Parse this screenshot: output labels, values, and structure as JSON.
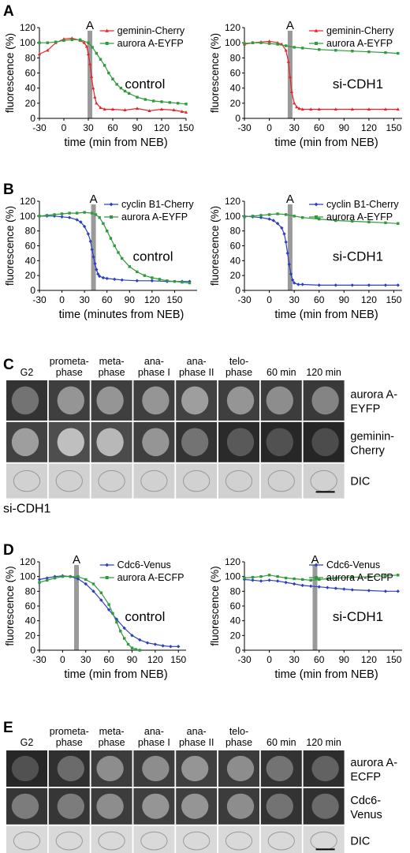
{
  "panels": [
    {
      "id": "panel-a",
      "letter": "A"
    },
    {
      "id": "panel-b",
      "letter": "B"
    },
    {
      "id": "panel-c",
      "letter": "C"
    },
    {
      "id": "panel-d",
      "letter": "D"
    },
    {
      "id": "panel-e",
      "letter": "E"
    }
  ],
  "chart_data": [
    {
      "type": "line",
      "panel": "A",
      "annotation": "control",
      "marker_label": "A",
      "marker_x": 32,
      "xlabel": "time (min from NEB)",
      "ylabel": "fluorescence (%)",
      "xlim": [
        -30,
        150
      ],
      "ylim": [
        0,
        120
      ],
      "xticks": [
        -30,
        0,
        30,
        60,
        90,
        120,
        150
      ],
      "yticks": [
        0,
        20,
        40,
        60,
        80,
        100,
        120
      ],
      "legend_position": "top-right",
      "series": [
        {
          "name": "geminin-Cherry",
          "color": "#e8242b",
          "marker": "triangle",
          "x": [
            -30,
            -20,
            -10,
            0,
            10,
            20,
            25,
            28,
            30,
            32,
            34,
            36,
            38,
            40,
            45,
            50,
            60,
            75,
            90,
            105,
            120,
            135,
            145,
            150
          ],
          "y": [
            85,
            90,
            100,
            105,
            106,
            103,
            100,
            95,
            85,
            72,
            55,
            40,
            28,
            20,
            14,
            12,
            12,
            11,
            13,
            10,
            12,
            11,
            9,
            8
          ]
        },
        {
          "name": "aurora A-EYFP",
          "color": "#2e9a3c",
          "marker": "square",
          "x": [
            -30,
            -20,
            -10,
            0,
            10,
            20,
            30,
            35,
            40,
            45,
            50,
            55,
            60,
            65,
            70,
            75,
            80,
            90,
            100,
            110,
            120,
            130,
            140,
            150
          ],
          "y": [
            100,
            100,
            101,
            103,
            104,
            104,
            100,
            94,
            86,
            78,
            70,
            60,
            52,
            45,
            40,
            36,
            33,
            28,
            25,
            23,
            22,
            21,
            20,
            19
          ]
        }
      ]
    },
    {
      "type": "line",
      "panel": "A",
      "annotation": "si-CDH1",
      "marker_label": "A",
      "marker_x": 25,
      "xlabel": "time (min from NEB)",
      "ylabel": "fluorescence (%)",
      "xlim": [
        -30,
        160
      ],
      "ylim": [
        0,
        120
      ],
      "xticks": [
        -30,
        0,
        30,
        60,
        90,
        120,
        150
      ],
      "yticks": [
        0,
        20,
        40,
        60,
        80,
        100,
        120
      ],
      "legend_position": "top-right",
      "series": [
        {
          "name": "geminin-Cherry",
          "color": "#e8242b",
          "marker": "triangle",
          "x": [
            -30,
            -20,
            -10,
            0,
            10,
            15,
            20,
            23,
            25,
            27,
            30,
            33,
            36,
            40,
            50,
            60,
            80,
            100,
            120,
            140,
            155
          ],
          "y": [
            98,
            100,
            101,
            102,
            100,
            98,
            90,
            75,
            55,
            35,
            20,
            15,
            13,
            12,
            12,
            12,
            12,
            12,
            12,
            12,
            12
          ]
        },
        {
          "name": "aurora A-EYFP",
          "color": "#2e9a3c",
          "marker": "square",
          "x": [
            -30,
            -20,
            -10,
            0,
            10,
            20,
            30,
            40,
            60,
            80,
            100,
            120,
            140,
            155
          ],
          "y": [
            99,
            100,
            100,
            99,
            98,
            96,
            94,
            93,
            91,
            90,
            89,
            88,
            87,
            86
          ]
        }
      ]
    },
    {
      "type": "line",
      "panel": "B",
      "annotation": "control",
      "marker_label": "A",
      "marker_x": 42,
      "xlabel": "time (minutes from NEB)",
      "ylabel": "fluorescence (%)",
      "xlim": [
        -30,
        180
      ],
      "ylim": [
        0,
        120
      ],
      "xticks": [
        -30,
        0,
        30,
        60,
        90,
        120,
        150
      ],
      "yticks": [
        0,
        20,
        40,
        60,
        80,
        100,
        120
      ],
      "legend_position": "top-right",
      "series": [
        {
          "name": "cyclin B1-Cherry",
          "color": "#2b3fbf",
          "marker": "diamond",
          "x": [
            -30,
            -20,
            -10,
            0,
            10,
            20,
            25,
            30,
            35,
            38,
            40,
            42,
            44,
            46,
            48,
            50,
            55,
            60,
            70,
            80,
            100,
            120,
            140,
            160,
            170
          ],
          "y": [
            100,
            100,
            100,
            99,
            98,
            95,
            92,
            86,
            76,
            66,
            55,
            45,
            36,
            28,
            22,
            19,
            17,
            16,
            15,
            14,
            13,
            13,
            12,
            12,
            12
          ]
        },
        {
          "name": "aurora A-EYFP",
          "color": "#2e9a3c",
          "marker": "square",
          "x": [
            -30,
            -20,
            -10,
            0,
            10,
            20,
            30,
            40,
            45,
            50,
            55,
            60,
            65,
            70,
            75,
            80,
            90,
            100,
            110,
            120,
            130,
            140,
            150,
            160,
            170
          ],
          "y": [
            100,
            101,
            102,
            103,
            104,
            104,
            105,
            104,
            102,
            98,
            90,
            80,
            70,
            60,
            51,
            43,
            32,
            25,
            20,
            17,
            15,
            13,
            12,
            11,
            10
          ]
        }
      ]
    },
    {
      "type": "line",
      "panel": "B",
      "annotation": "si-CDH1",
      "marker_label": "A",
      "marker_x": 25,
      "xlabel": "time (min from NEB)",
      "ylabel": "fluorescence (%)",
      "xlim": [
        -30,
        160
      ],
      "ylim": [
        0,
        120
      ],
      "xticks": [
        -30,
        0,
        30,
        60,
        90,
        120,
        150
      ],
      "yticks": [
        0,
        20,
        40,
        60,
        80,
        100,
        120
      ],
      "legend_position": "top-right",
      "series": [
        {
          "name": "cyclin B1-Cherry",
          "color": "#2b3fbf",
          "marker": "diamond",
          "x": [
            -30,
            -20,
            -10,
            0,
            5,
            10,
            15,
            18,
            20,
            22,
            24,
            26,
            28,
            30,
            35,
            40,
            60,
            80,
            100,
            120,
            140,
            155
          ],
          "y": [
            100,
            99,
            98,
            96,
            94,
            90,
            84,
            76,
            65,
            50,
            35,
            22,
            14,
            10,
            8,
            8,
            7,
            7,
            7,
            7,
            7,
            7
          ]
        },
        {
          "name": "aurora A-EYFP",
          "color": "#2e9a3c",
          "marker": "square",
          "x": [
            -30,
            -20,
            -10,
            0,
            10,
            20,
            30,
            40,
            60,
            80,
            100,
            120,
            140,
            155
          ],
          "y": [
            99,
            100,
            101,
            102,
            103,
            102,
            100,
            98,
            96,
            94,
            93,
            92,
            91,
            90
          ]
        }
      ]
    },
    {
      "type": "line",
      "panel": "D",
      "annotation": "control",
      "marker_label": "A",
      "marker_x": 18,
      "xlabel": "time (min from NEB)",
      "ylabel": "fluorescence (%)",
      "xlim": [
        -30,
        160
      ],
      "ylim": [
        0,
        120
      ],
      "xticks": [
        -30,
        0,
        30,
        60,
        90,
        120,
        150
      ],
      "yticks": [
        0,
        20,
        40,
        60,
        80,
        100,
        120
      ],
      "legend_position": "top-right",
      "series": [
        {
          "name": "Cdc6-Venus",
          "color": "#2b3fbf",
          "marker": "diamond",
          "x": [
            -30,
            -20,
            -10,
            0,
            10,
            20,
            30,
            40,
            50,
            60,
            70,
            80,
            90,
            100,
            110,
            120,
            130,
            140,
            150
          ],
          "y": [
            96,
            98,
            100,
            101,
            100,
            97,
            90,
            80,
            68,
            55,
            42,
            30,
            20,
            14,
            10,
            8,
            6,
            5,
            5
          ]
        },
        {
          "name": "aurora A-ECFP",
          "color": "#2e9a3c",
          "marker": "square",
          "x": [
            -30,
            -20,
            -10,
            0,
            10,
            20,
            30,
            40,
            50,
            60,
            65,
            70,
            75,
            80,
            85,
            90,
            95,
            100
          ],
          "y": [
            92,
            95,
            98,
            100,
            100,
            100,
            96,
            90,
            78,
            62,
            50,
            38,
            26,
            16,
            8,
            3,
            1,
            0
          ]
        }
      ]
    },
    {
      "type": "line",
      "panel": "D",
      "annotation": "si-CDH1",
      "marker_label": "A",
      "marker_x": 55,
      "xlabel": "time (min from NEB)",
      "ylabel": "fluorescence (%)",
      "xlim": [
        -30,
        160
      ],
      "ylim": [
        0,
        120
      ],
      "xticks": [
        -30,
        0,
        30,
        60,
        90,
        120,
        150
      ],
      "yticks": [
        0,
        20,
        40,
        60,
        80,
        100,
        120
      ],
      "legend_position": "top-right",
      "series": [
        {
          "name": "Cdc6-Venus",
          "color": "#2b3fbf",
          "marker": "diamond",
          "x": [
            -30,
            -20,
            -10,
            0,
            10,
            20,
            30,
            40,
            50,
            60,
            70,
            80,
            90,
            100,
            120,
            140,
            155
          ],
          "y": [
            96,
            95,
            94,
            95,
            94,
            92,
            90,
            88,
            87,
            86,
            85,
            84,
            83,
            82,
            81,
            80,
            80
          ]
        },
        {
          "name": "aurora A-ECFP",
          "color": "#2e9a3c",
          "marker": "square",
          "x": [
            -30,
            -20,
            -10,
            0,
            10,
            20,
            30,
            40,
            50,
            60,
            70,
            80,
            100,
            120,
            140,
            155
          ],
          "y": [
            98,
            99,
            100,
            102,
            100,
            98,
            97,
            96,
            95,
            96,
            97,
            98,
            99,
            100,
            101,
            102
          ]
        }
      ]
    }
  ],
  "panel_c": {
    "columns": [
      "G2",
      "prometa-\nphase",
      "meta-\nphase",
      "ana-\nphase I",
      "ana-\nphase II",
      "telo-\nphase",
      "60 min",
      "120 min"
    ],
    "rows": [
      "aurora A-\nEYFP",
      "geminin-\nCherry",
      "DIC"
    ],
    "condition": "si-CDH1",
    "intensities": [
      [
        0.35,
        0.55,
        0.55,
        0.55,
        0.6,
        0.55,
        0.5,
        0.45
      ],
      [
        0.6,
        0.8,
        0.75,
        0.55,
        0.35,
        0.2,
        0.15,
        0.12
      ],
      [
        0.82,
        0.82,
        0.82,
        0.82,
        0.82,
        0.82,
        0.82,
        0.82
      ]
    ]
  },
  "panel_e": {
    "columns": [
      "G2",
      "prometa-\nphase",
      "meta-\nphase",
      "ana-\nphase I",
      "ana-\nphase II",
      "telo-\nphase",
      "60 min",
      "120 min"
    ],
    "rows": [
      "aurora A-\nECFP",
      "Cdc6-\nVenus",
      "DIC"
    ],
    "condition": "si-CDH1",
    "intensities": [
      [
        0.15,
        0.3,
        0.5,
        0.5,
        0.55,
        0.5,
        0.35,
        0.25
      ],
      [
        0.4,
        0.4,
        0.5,
        0.55,
        0.55,
        0.5,
        0.35,
        0.3
      ],
      [
        0.85,
        0.85,
        0.85,
        0.85,
        0.85,
        0.85,
        0.85,
        0.85
      ]
    ]
  }
}
